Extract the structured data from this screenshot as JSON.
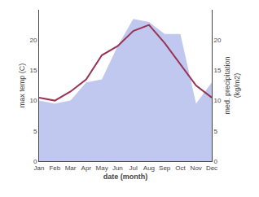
{
  "chart_data": {
    "type": "line",
    "categories": [
      "Jan",
      "Feb",
      "Mar",
      "Apr",
      "May",
      "Jun",
      "Jul",
      "Aug",
      "Sep",
      "Oct",
      "Nov",
      "Dec"
    ],
    "xlabel": "date (month)",
    "ylabel": "max temp (C)",
    "y2label": "med. precipitation\n(kg/m2)",
    "ylim": [
      0,
      25
    ],
    "yticks": [
      0,
      5,
      10,
      15,
      20
    ],
    "y2lim": [
      0,
      25
    ],
    "y2ticks": [
      0,
      5,
      10,
      15,
      20
    ],
    "grid": false,
    "series": [
      {
        "type": "area",
        "axis": "y2",
        "color": "#c0c8f0",
        "values": [
          10.0,
          9.5,
          10.0,
          13.0,
          13.5,
          19.0,
          23.5,
          23.0,
          21.0,
          21.0,
          9.5,
          13.0
        ]
      },
      {
        "type": "line",
        "color": "#993355",
        "values": [
          10.5,
          10.0,
          11.5,
          13.5,
          17.5,
          19.0,
          21.5,
          22.5,
          19.5,
          16.0,
          12.5,
          10.5
        ]
      }
    ]
  }
}
